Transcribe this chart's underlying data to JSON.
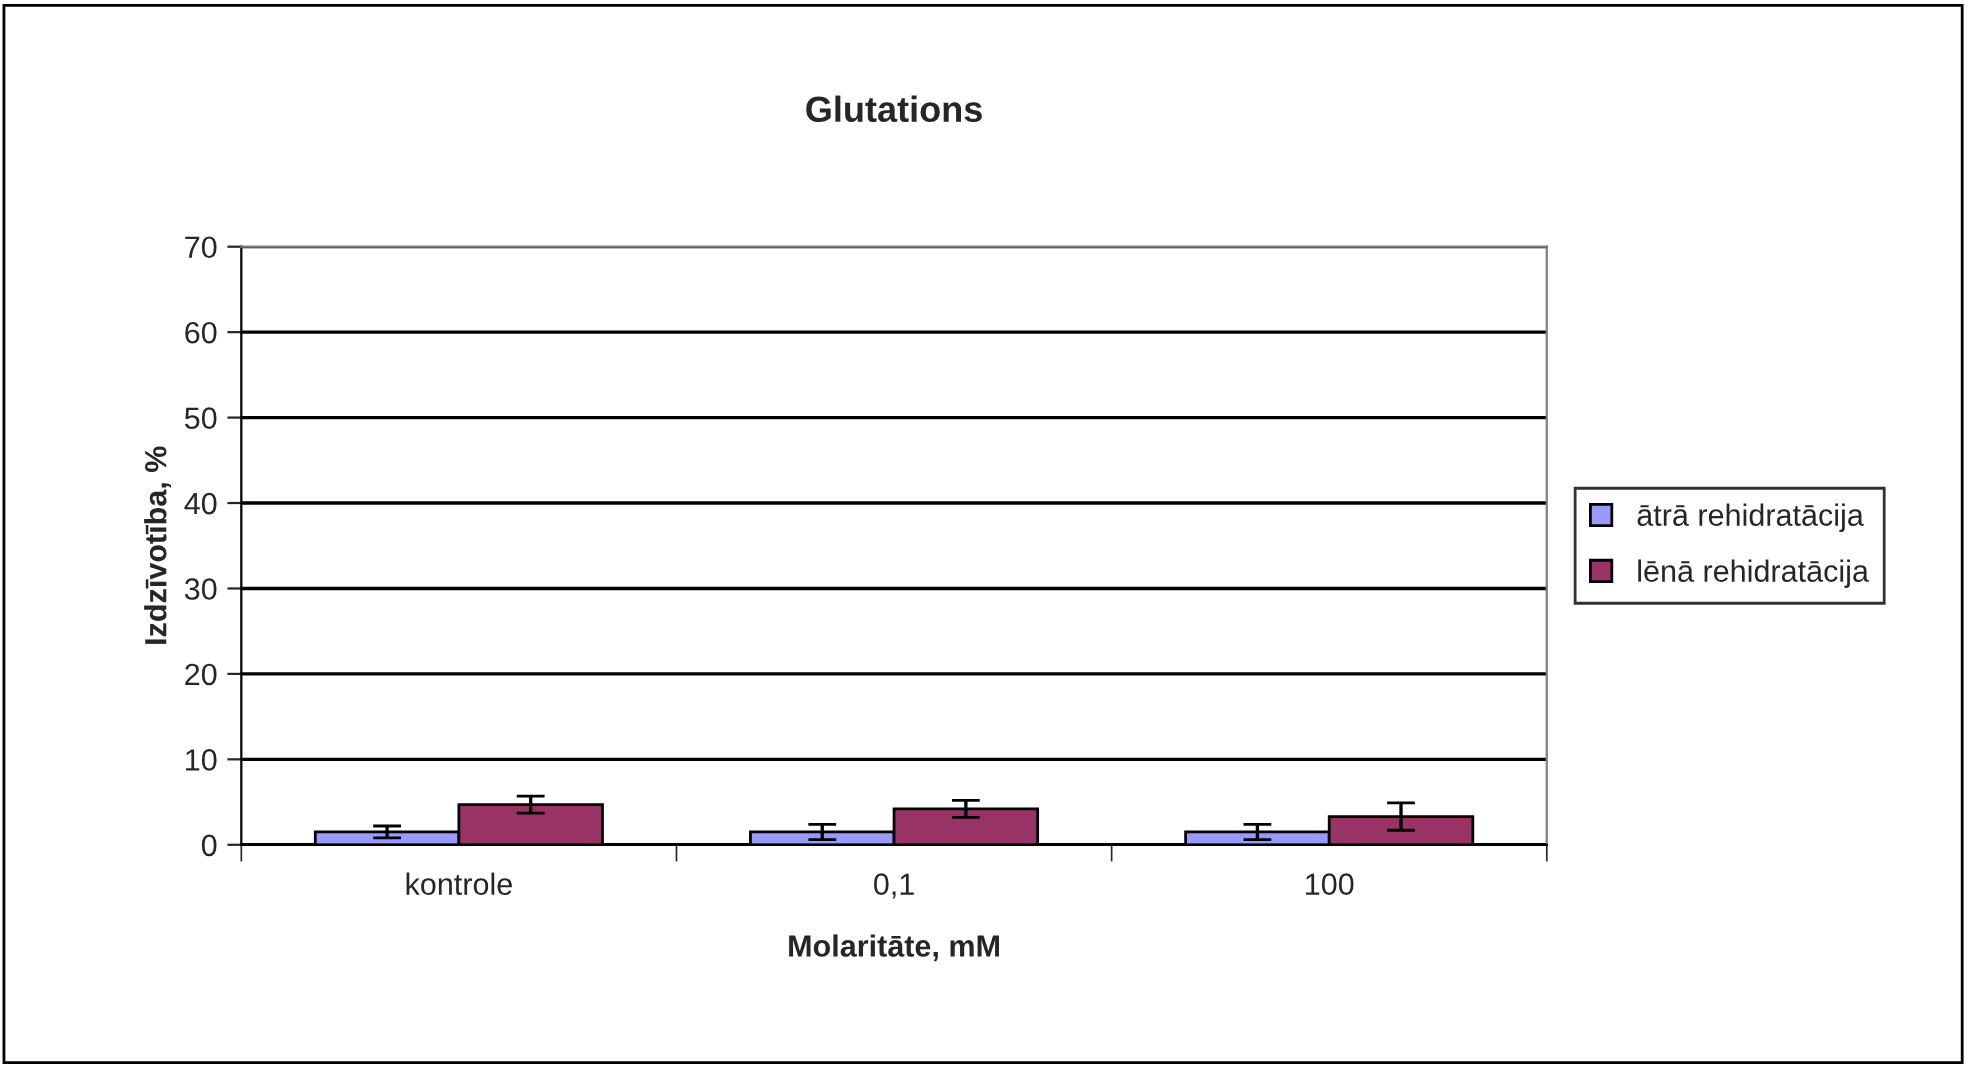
{
  "chart_data": {
    "type": "bar",
    "title": "Glutations",
    "xlabel": "Molaritāte, mM",
    "ylabel": "Izdzīvotība, %",
    "categories": [
      "kontrole",
      "0,1",
      "100"
    ],
    "series": [
      {
        "name": "ātrā rehidratācija",
        "color": "#9999ff",
        "values": [
          1.5,
          1.5,
          1.5
        ],
        "errors": [
          0.7,
          0.9,
          0.9
        ]
      },
      {
        "name": "lēnā rehidratācija",
        "color": "#993366",
        "values": [
          4.7,
          4.2,
          3.3
        ],
        "errors": [
          1.0,
          1.0,
          1.6
        ]
      }
    ],
    "ylim": [
      0,
      70
    ],
    "yticks": [
      0,
      10,
      20,
      30,
      40,
      50,
      60,
      70
    ],
    "grid": "y",
    "legend": "right"
  }
}
